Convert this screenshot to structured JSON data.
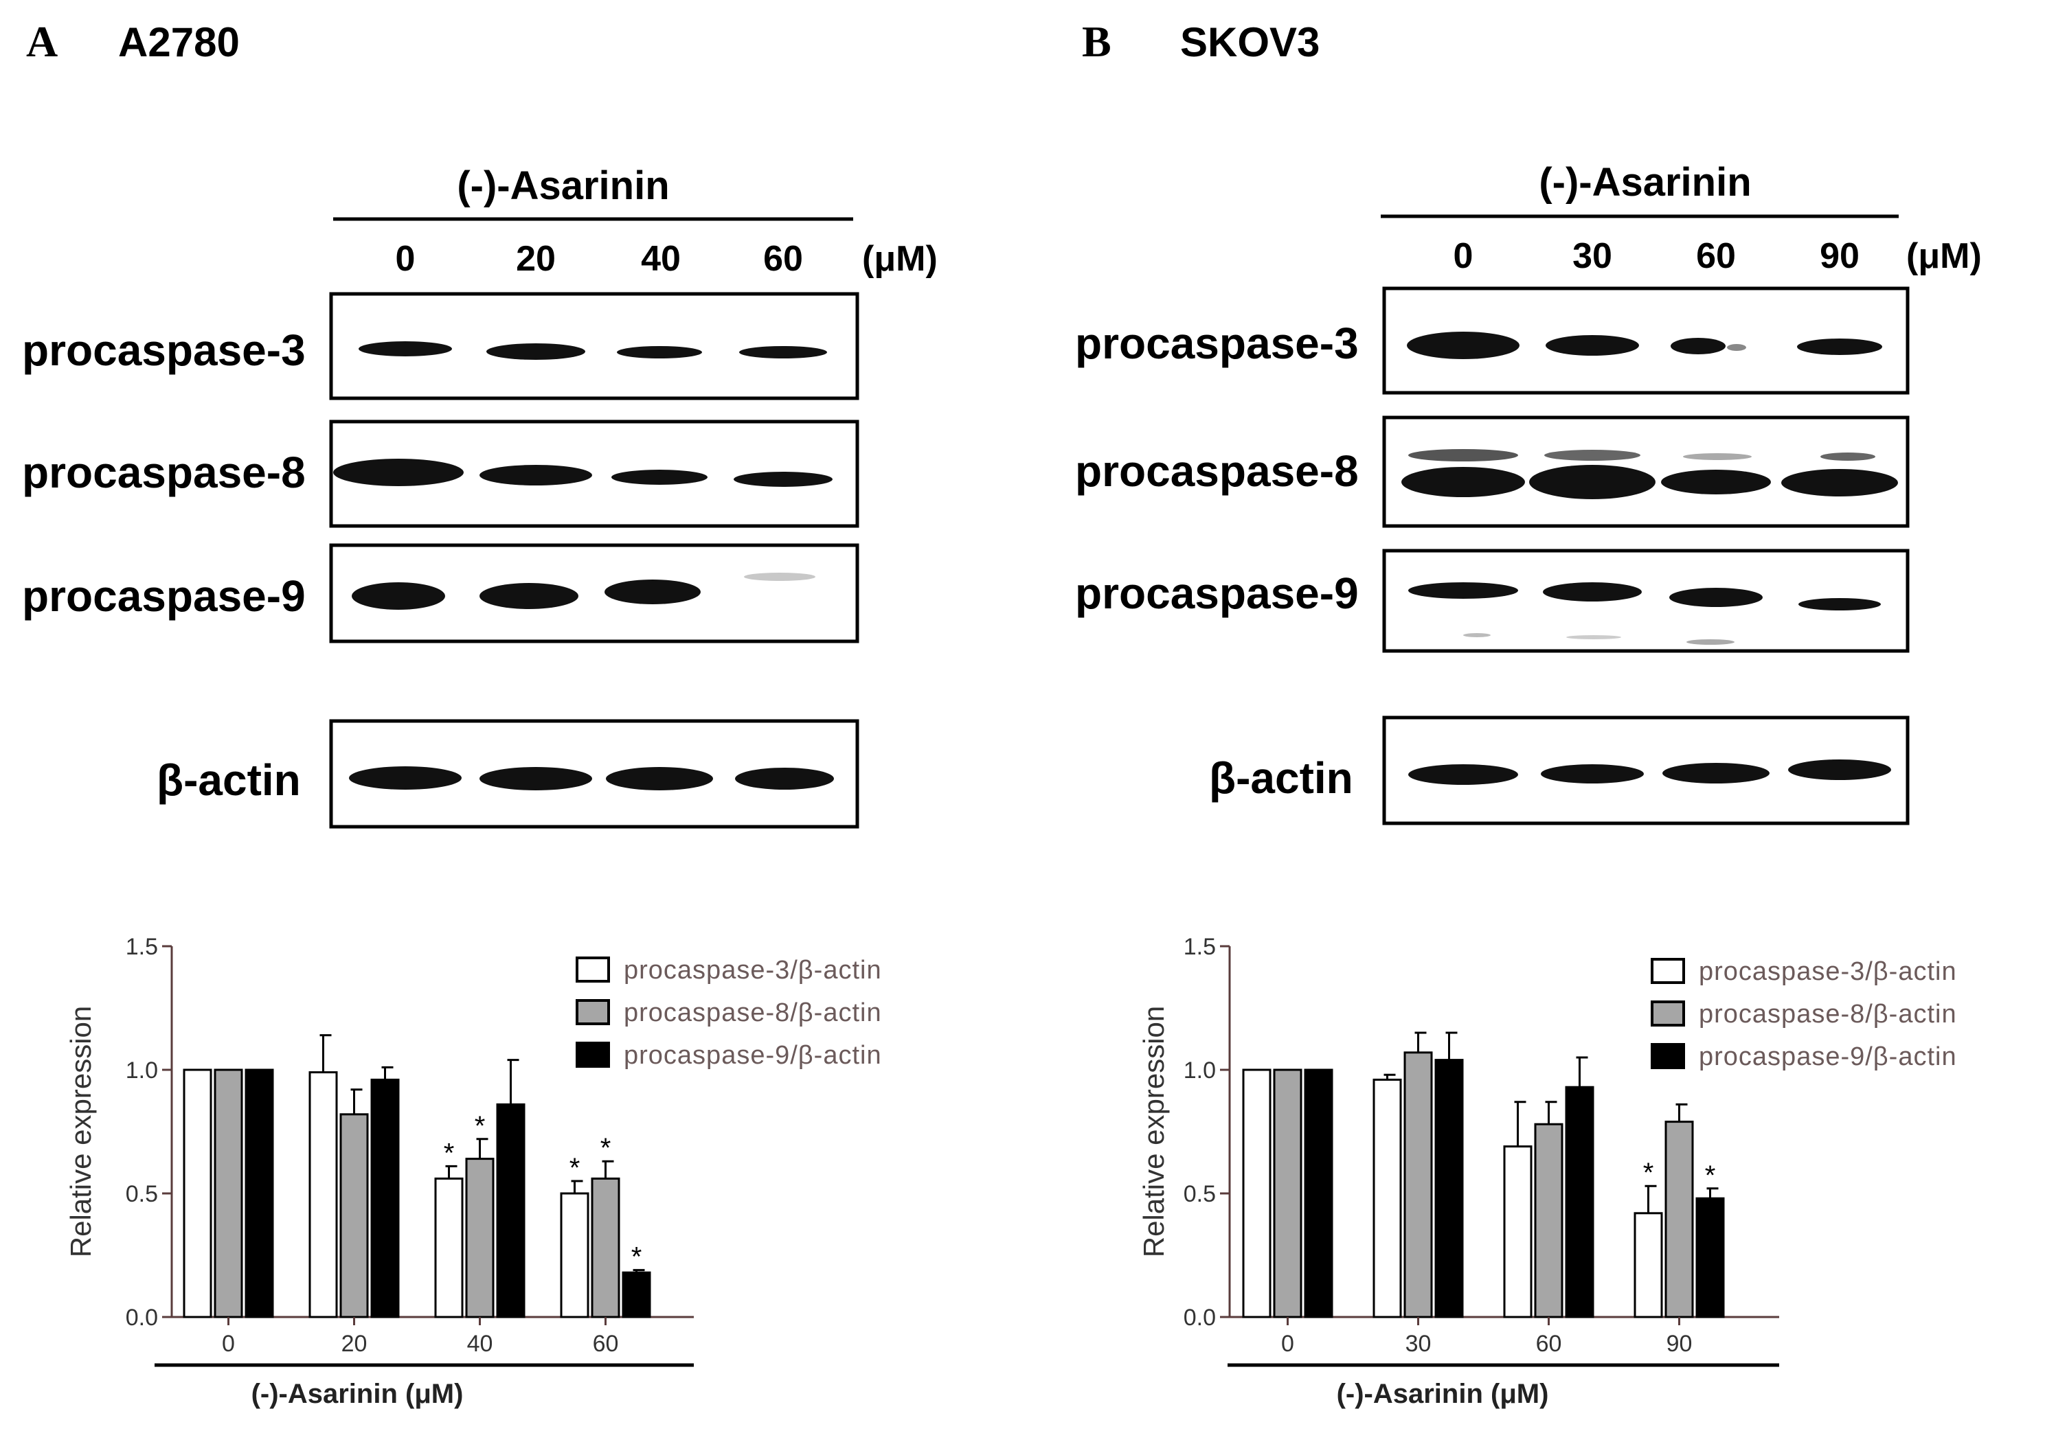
{
  "panels": [
    {
      "letter": "A",
      "cell_line": "A2780",
      "treatment_label": "(-)-Asarinin",
      "doses": [
        "0",
        "20",
        "40",
        "60"
      ],
      "unit": "(μM)",
      "blot_labels": [
        "procaspase-3",
        "procaspase-8",
        "procaspase-9",
        "β-actin"
      ]
    },
    {
      "letter": "B",
      "cell_line": "SKOV3",
      "treatment_label": "(-)-Asarinin",
      "doses": [
        "0",
        "30",
        "60",
        "90"
      ],
      "unit": "(μM)",
      "blot_labels": [
        "procaspase-3",
        "procaspase-8",
        "procaspase-9",
        "β-actin"
      ]
    }
  ],
  "colors": {
    "procaspase3": "#ffffff",
    "procaspase8": "#a6a6a6",
    "procaspase9": "#000000",
    "axis": "#5a3c3c",
    "band": "#111111"
  },
  "chart_data": [
    {
      "type": "bar",
      "panel": "A",
      "categories": [
        "0",
        "20",
        "40",
        "60"
      ],
      "series": [
        {
          "name": "procaspase-3/β-actin",
          "values": [
            1.0,
            0.99,
            0.56,
            0.5
          ],
          "errors": [
            0.0,
            0.15,
            0.05,
            0.05
          ],
          "significant": [
            false,
            false,
            true,
            true
          ]
        },
        {
          "name": "procaspase-8/β-actin",
          "values": [
            1.0,
            0.82,
            0.64,
            0.56
          ],
          "errors": [
            0.0,
            0.1,
            0.08,
            0.07
          ],
          "significant": [
            false,
            false,
            true,
            true
          ]
        },
        {
          "name": "procaspase-9/β-actin",
          "values": [
            1.0,
            0.96,
            0.86,
            0.18
          ],
          "errors": [
            0.0,
            0.05,
            0.18,
            0.01
          ],
          "significant": [
            false,
            false,
            false,
            true
          ]
        }
      ],
      "yticks": [
        "0.0",
        "0.5",
        "1.0",
        "1.5"
      ],
      "ylim": [
        0,
        1.5
      ],
      "xlabel": "(-)-Asarinin (μM)",
      "ylabel": "Relative expression",
      "legend_position": "top-right",
      "significance_marker": "*"
    },
    {
      "type": "bar",
      "panel": "B",
      "categories": [
        "0",
        "30",
        "60",
        "90"
      ],
      "series": [
        {
          "name": "procaspase-3/β-actin",
          "values": [
            1.0,
            0.96,
            0.69,
            0.42
          ],
          "errors": [
            0.0,
            0.02,
            0.18,
            0.11
          ],
          "significant": [
            false,
            false,
            false,
            true
          ]
        },
        {
          "name": "procaspase-8/β-actin",
          "values": [
            1.0,
            1.07,
            0.78,
            0.79
          ],
          "errors": [
            0.0,
            0.08,
            0.09,
            0.07
          ],
          "significant": [
            false,
            false,
            false,
            false
          ]
        },
        {
          "name": "procaspase-9/β-actin",
          "values": [
            1.0,
            1.04,
            0.93,
            0.48
          ],
          "errors": [
            0.0,
            0.11,
            0.12,
            0.04
          ],
          "significant": [
            false,
            false,
            false,
            true
          ]
        }
      ],
      "yticks": [
        "0.0",
        "0.5",
        "1.0",
        "1.5"
      ],
      "ylim": [
        0,
        1.5
      ],
      "xlabel": "(-)-Asarinin (μM)",
      "ylabel": "Relative expression",
      "legend_position": "top-right",
      "significance_marker": "*"
    }
  ]
}
